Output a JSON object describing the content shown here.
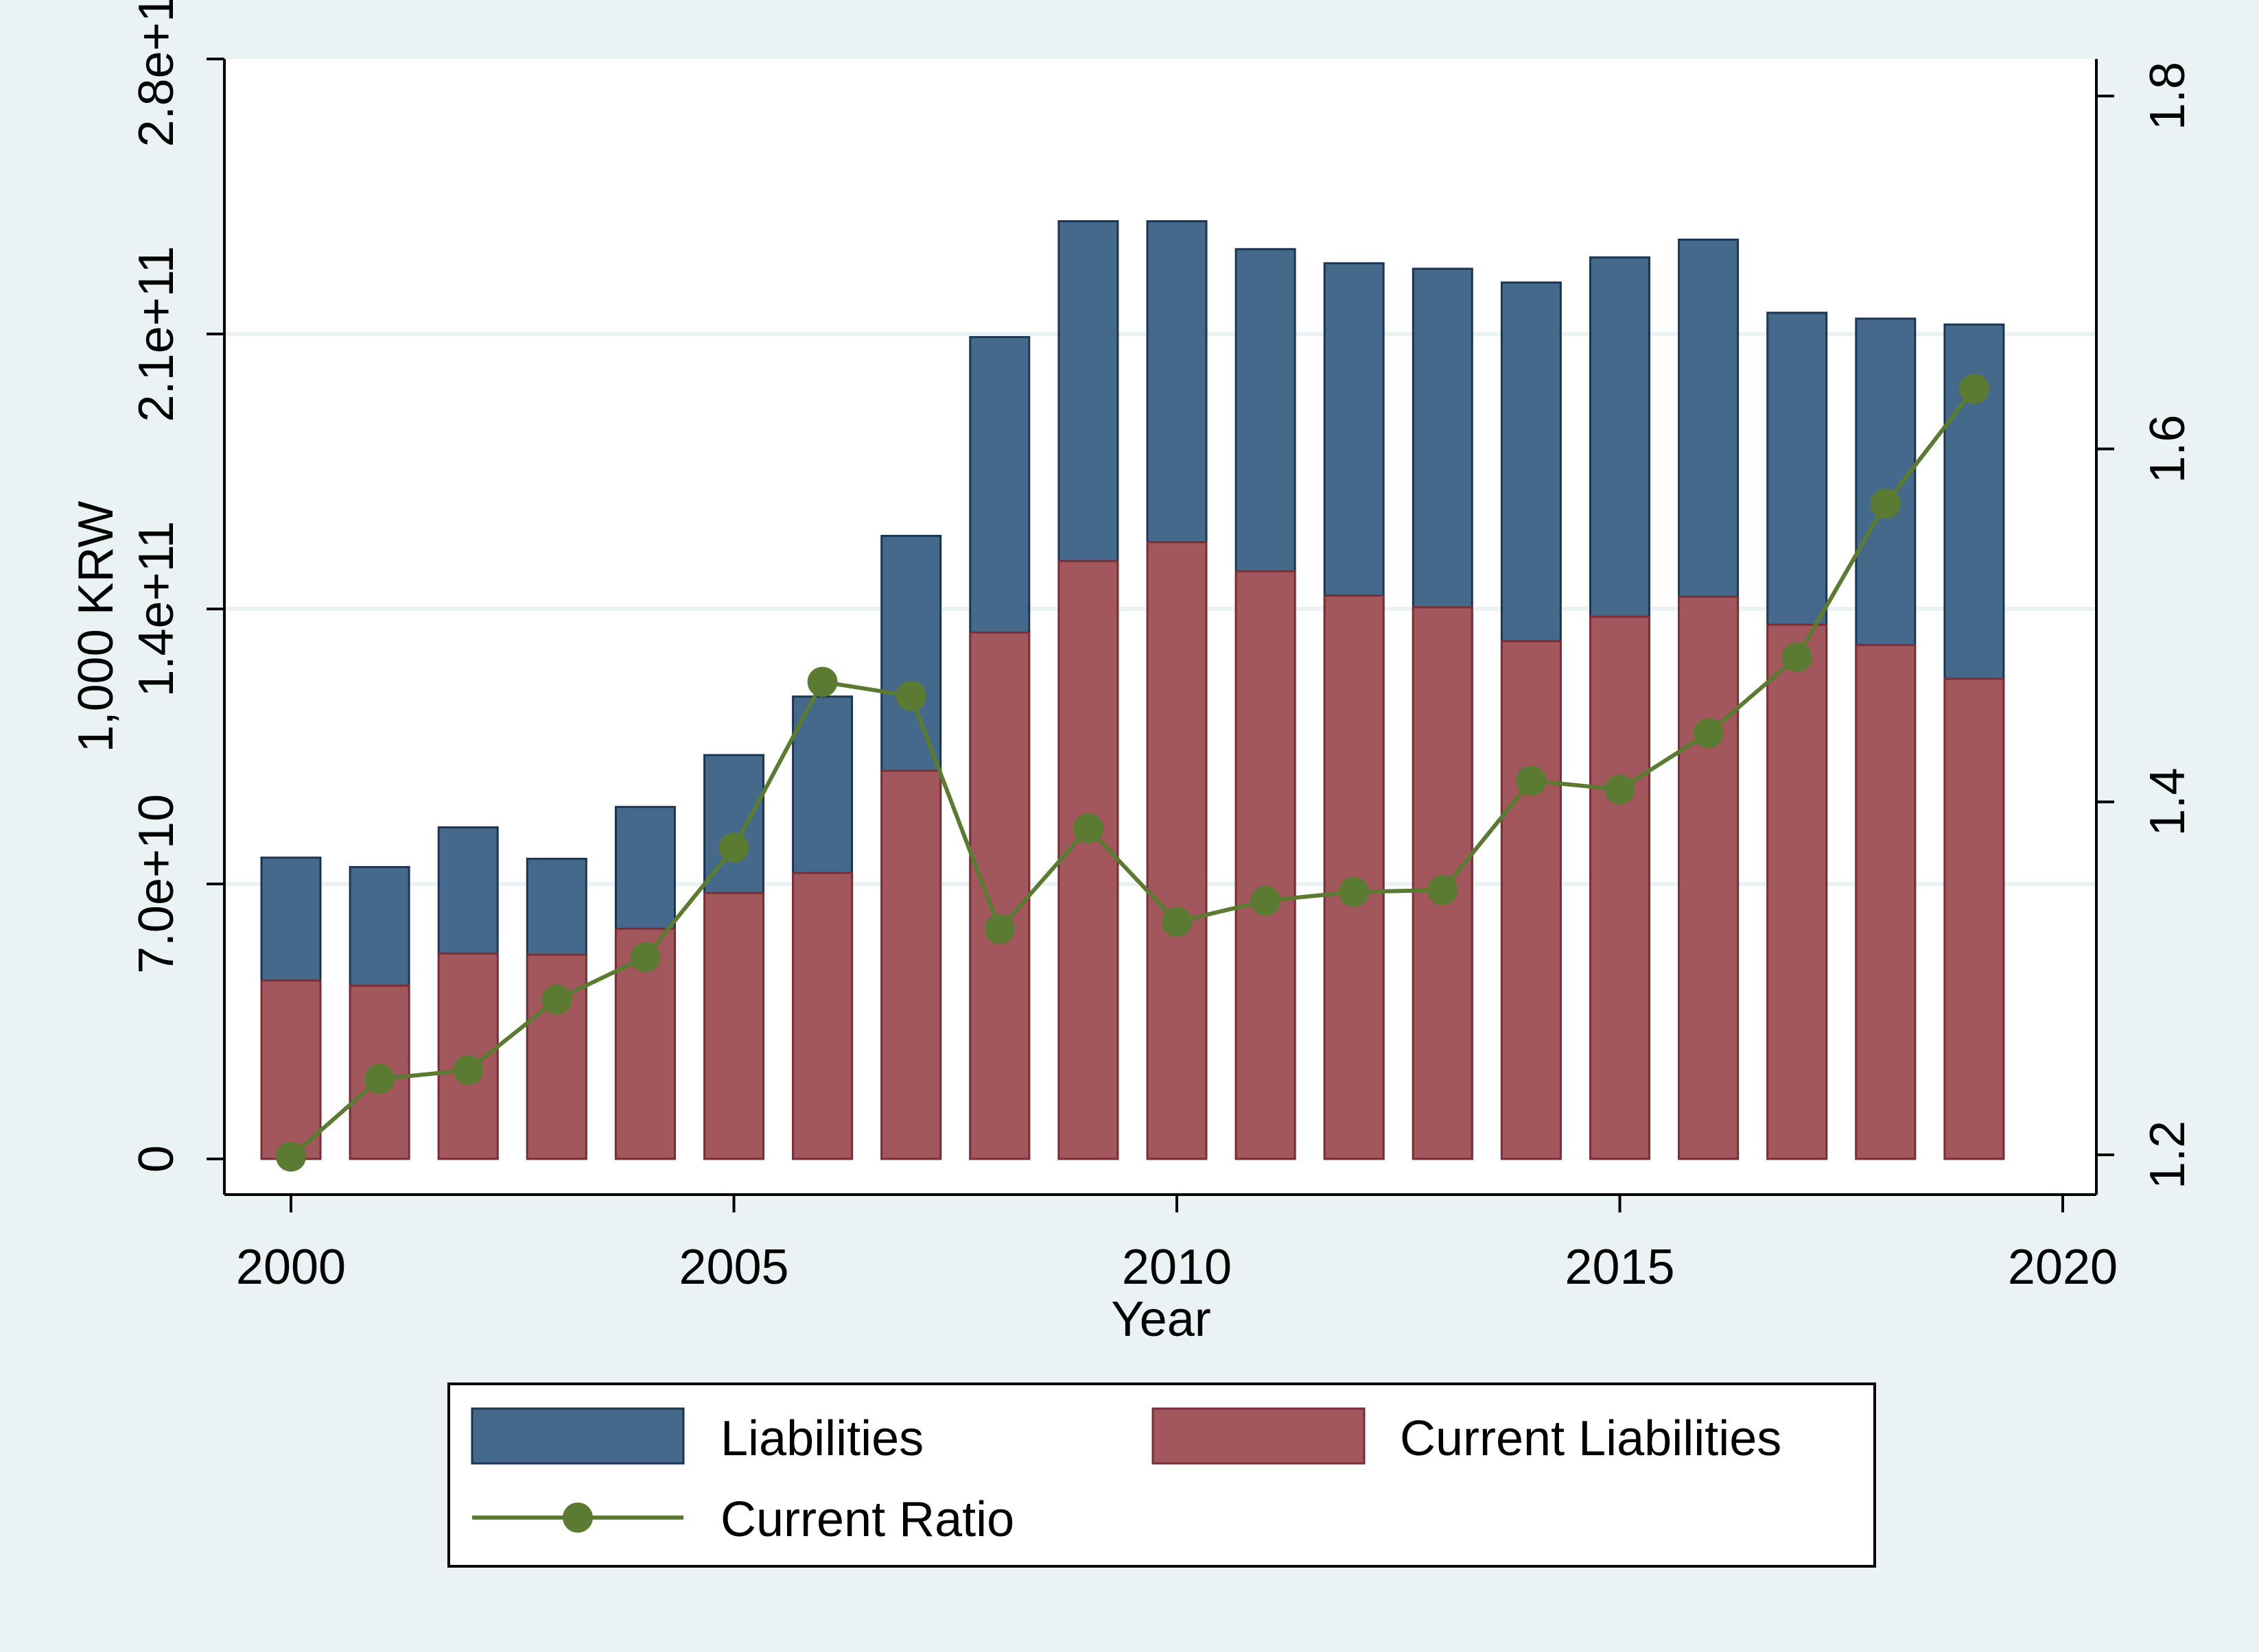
{
  "chart_data": {
    "type": "bar",
    "title": "",
    "xlabel": "Year",
    "ylabel": "1,000 KRW",
    "x": [
      2000,
      2001,
      2002,
      2003,
      2004,
      2005,
      2006,
      2007,
      2008,
      2009,
      2010,
      2011,
      2012,
      2013,
      2014,
      2015,
      2016,
      2017,
      2018,
      2019
    ],
    "xticks": [
      "2000",
      "2005",
      "2010",
      "2015",
      "2020"
    ],
    "xlim": [
      2000,
      2020
    ],
    "yticks_left": [
      "0",
      "7.0e+10",
      "1.4e+11",
      "2.1e+11",
      "2.8e+11"
    ],
    "ylim_left": [
      0,
      280000000000
    ],
    "yticks_right": [
      "1.2",
      "1.4",
      "1.6",
      "1.8"
    ],
    "ylim_right": [
      1.2,
      1.8
    ],
    "grid": true,
    "legend_position": "bottom",
    "series": [
      {
        "name": "Liabilities",
        "kind": "bar",
        "color": "#45698b",
        "values": [
          76700000000,
          74300000000,
          84400000000,
          76400000000,
          89600000000,
          102800000000,
          117700000000,
          158600000000,
          209200000000,
          238700000000,
          238700000000,
          231600000000,
          228000000000,
          226600000000,
          223100000000,
          229500000000,
          234000000000,
          215400000000,
          213900000000,
          212400000000
        ]
      },
      {
        "name": "Current Liabilities",
        "kind": "bar",
        "color": "#a2575c",
        "values": [
          45400000000,
          44100000000,
          52300000000,
          52000000000,
          58600000000,
          67700000000,
          72800000000,
          98800000000,
          134000000000,
          152200000000,
          157000000000,
          149600000000,
          143400000000,
          140400000000,
          131800000000,
          138000000000,
          143100000000,
          136000000000,
          130800000000,
          122200000000
        ]
      },
      {
        "name": "Current Ratio",
        "kind": "line",
        "axis": "right",
        "color": "#5b7a32",
        "values": [
          1.199,
          1.243,
          1.248,
          1.288,
          1.312,
          1.374,
          1.468,
          1.46,
          1.328,
          1.385,
          1.332,
          1.344,
          1.349,
          1.35,
          1.412,
          1.407,
          1.439,
          1.482,
          1.569,
          1.634
        ]
      }
    ]
  }
}
